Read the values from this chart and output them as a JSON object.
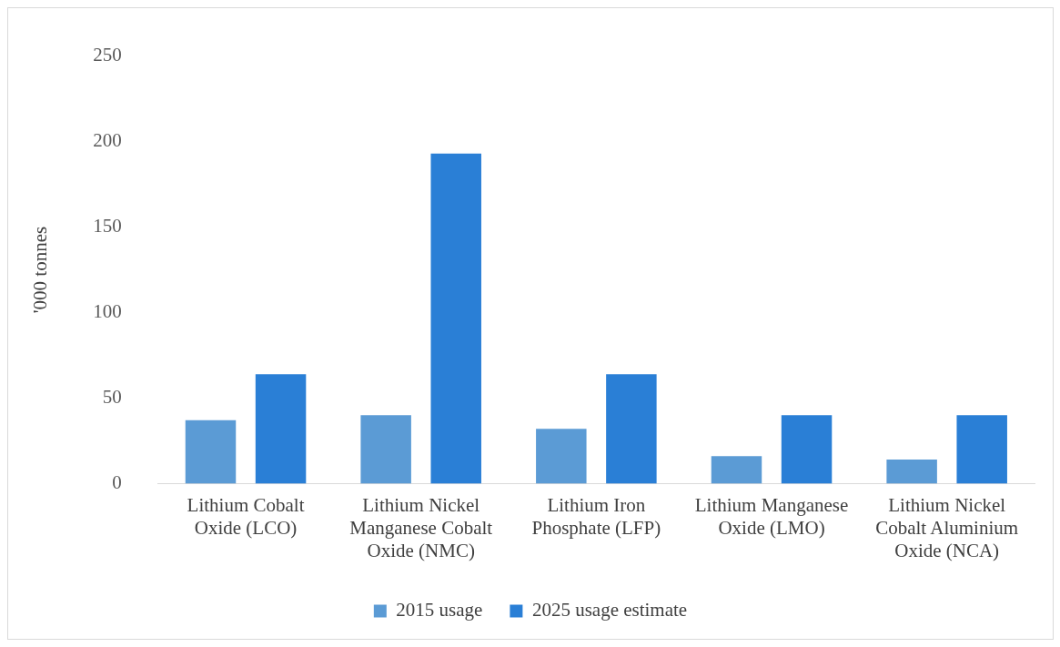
{
  "chart_data": {
    "type": "bar",
    "ylabel": "'000 tonnes",
    "categories": [
      "Lithium Cobalt Oxide (LCO)",
      "Lithium Nickel Manganese Cobalt Oxide (NMC)",
      "Lithium Iron Phosphate (LFP)",
      "Lithium Manganese Oxide (LMO)",
      "Lithium Nickel Cobalt Aluminium Oxide (NCA)"
    ],
    "series": [
      {
        "name": "2015 usage",
        "color": "#5b9bd5",
        "values": [
          37,
          40,
          32,
          16,
          14
        ]
      },
      {
        "name": "2025 usage estimate",
        "color": "#2a7fd6",
        "values": [
          64,
          193,
          64,
          40,
          40
        ]
      }
    ],
    "ylim": [
      0,
      250
    ],
    "yticks": [
      0,
      50,
      100,
      150,
      200,
      250
    ],
    "grid": false,
    "legend": "bottom"
  }
}
